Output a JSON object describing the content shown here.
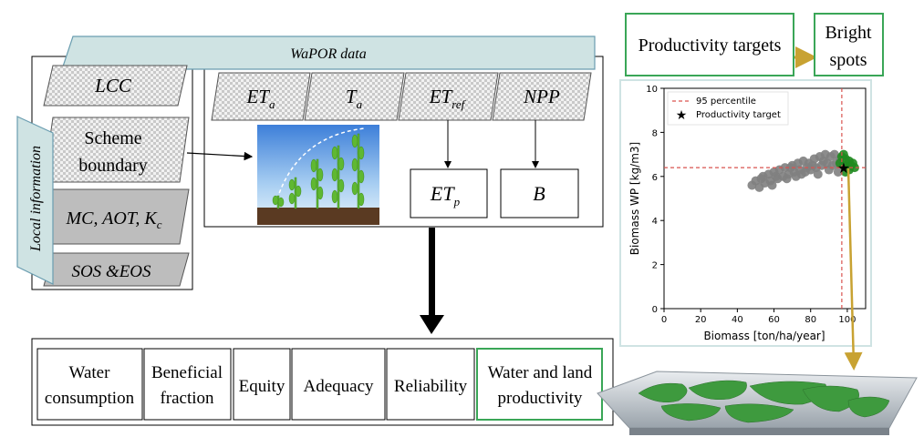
{
  "wapor": {
    "label": "WaPOR data"
  },
  "local_info": {
    "label": "Local information",
    "items": [
      {
        "text": "LCC"
      },
      {
        "line1": "Scheme",
        "line2": "boundary"
      },
      {
        "text": "MC, AOT, K",
        "sub": "c"
      },
      {
        "text": "SOS &EOS"
      }
    ]
  },
  "wapor_layers": [
    {
      "base": "ET",
      "sub": "a"
    },
    {
      "base": "T",
      "sub": "a"
    },
    {
      "base": "ET",
      "sub": "ref"
    },
    {
      "base": "NPP",
      "sub": ""
    }
  ],
  "derived": [
    {
      "base": "ET",
      "sub": "p"
    },
    {
      "base": "B",
      "sub": ""
    }
  ],
  "indicators": [
    {
      "line1": "Water",
      "line2": "consumption"
    },
    {
      "line1": "Beneficial",
      "line2": "fraction"
    },
    {
      "line1": "Equity",
      "line2": ""
    },
    {
      "line1": "Adequacy",
      "line2": ""
    },
    {
      "line1": "Reliability",
      "line2": ""
    },
    {
      "line1": "Water and land",
      "line2": "productivity"
    }
  ],
  "targets": {
    "productivity_targets": "Productivity targets",
    "bright_spots_line1": "Bright",
    "bright_spots_line2": "spots"
  },
  "colors": {
    "banner": "#cfe3e3",
    "green_box": "#3aa657",
    "arrow_gold": "#c8a232",
    "gray_fill": "#bdbdbd",
    "points_gray": "#7f7f7f",
    "points_green": "#1f8a1f",
    "ref_line": "#d9534f"
  },
  "chart_data": {
    "type": "scatter",
    "xlabel": "Biomass [ton/ha/year]",
    "ylabel": "Biomass WP [kg/m3]",
    "xlim": [
      0,
      110
    ],
    "ylim": [
      0,
      10
    ],
    "xticks": [
      0,
      20,
      40,
      60,
      80,
      100
    ],
    "yticks": [
      0,
      2,
      4,
      6,
      8,
      10
    ],
    "legend": {
      "placement": "top-left",
      "entries": [
        "95 percentile",
        "Productivity target"
      ]
    },
    "percentile_x": 97,
    "percentile_y": 6.4,
    "target": {
      "x": 98,
      "y": 6.4
    },
    "series": [
      {
        "points": [
          [
            48,
            5.6
          ],
          [
            50,
            5.8
          ],
          [
            52,
            5.5
          ],
          [
            54,
            6.0
          ],
          [
            55,
            5.7
          ],
          [
            57,
            6.1
          ],
          [
            58,
            5.8
          ],
          [
            60,
            6.2
          ],
          [
            62,
            5.9
          ],
          [
            63,
            6.3
          ],
          [
            65,
            6.0
          ],
          [
            66,
            6.4
          ],
          [
            68,
            6.1
          ],
          [
            70,
            6.5
          ],
          [
            71,
            6.2
          ],
          [
            73,
            6.6
          ],
          [
            74,
            6.3
          ],
          [
            76,
            6.7
          ],
          [
            77,
            6.2
          ],
          [
            79,
            6.6
          ],
          [
            80,
            6.3
          ],
          [
            82,
            6.8
          ],
          [
            83,
            6.4
          ],
          [
            85,
            6.9
          ],
          [
            86,
            6.5
          ],
          [
            88,
            7.0
          ],
          [
            89,
            6.6
          ],
          [
            90,
            6.3
          ],
          [
            91,
            6.9
          ],
          [
            92,
            6.5
          ],
          [
            93,
            7.0
          ],
          [
            94,
            6.6
          ],
          [
            95,
            6.2
          ],
          [
            96,
            6.8
          ],
          [
            53,
            5.9
          ],
          [
            61,
            6.0
          ],
          [
            69,
            6.4
          ],
          [
            75,
            6.1
          ],
          [
            81,
            6.5
          ],
          [
            87,
            6.7
          ],
          [
            59,
            5.6
          ],
          [
            67,
            5.9
          ],
          [
            72,
            6.0
          ],
          [
            78,
            6.4
          ],
          [
            84,
            6.1
          ]
        ]
      },
      {
        "points": [
          [
            96,
            6.6
          ],
          [
            97,
            6.9
          ],
          [
            98,
            6.5
          ],
          [
            99,
            6.8
          ],
          [
            100,
            6.4
          ],
          [
            101,
            6.7
          ],
          [
            102,
            6.5
          ],
          [
            103,
            6.6
          ],
          [
            99,
            6.2
          ],
          [
            101,
            6.3
          ],
          [
            104,
            6.4
          ],
          [
            98,
            7.0
          ]
        ]
      }
    ]
  }
}
